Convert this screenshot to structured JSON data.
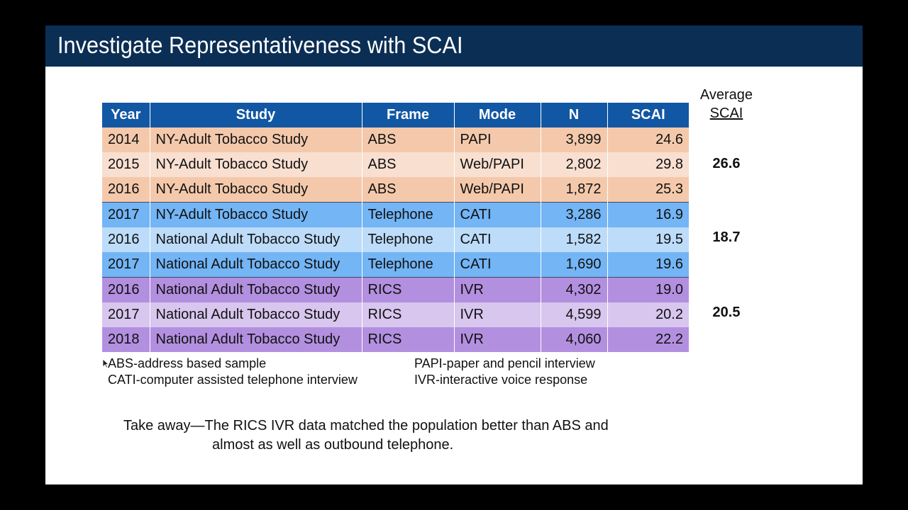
{
  "slide": {
    "title": "Investigate Representativeness with SCAI"
  },
  "table": {
    "headers": [
      "Year",
      "Study",
      "Frame",
      "Mode",
      "N",
      "SCAI"
    ],
    "rows": [
      [
        "2014",
        "NY-Adult Tobacco Study",
        "ABS",
        "PAPI",
        "3,899",
        "24.6"
      ],
      [
        "2015",
        "NY-Adult Tobacco Study",
        "ABS",
        "Web/PAPI",
        "2,802",
        "29.8"
      ],
      [
        "2016",
        "NY-Adult Tobacco Study",
        "ABS",
        "Web/PAPI",
        "1,872",
        "25.3"
      ],
      [
        "2017",
        "NY-Adult Tobacco Study",
        "Telephone",
        "CATI",
        "3,286",
        "16.9"
      ],
      [
        "2016",
        "National Adult Tobacco Study",
        "Telephone",
        "CATI",
        "1,582",
        "19.5"
      ],
      [
        "2017",
        "National Adult Tobacco Study",
        "Telephone",
        "CATI",
        "1,690",
        "19.6"
      ],
      [
        "2016",
        "National Adult Tobacco Study",
        "RICS",
        "IVR",
        "4,302",
        "19.0"
      ],
      [
        "2017",
        "National Adult Tobacco Study",
        "RICS",
        "IVR",
        "4,599",
        "20.2"
      ],
      [
        "2018",
        "National Adult Tobacco Study",
        "RICS",
        "IVR",
        "4,060",
        "22.2"
      ]
    ]
  },
  "average": {
    "header_line1": "Average",
    "header_line2": "SCAI",
    "values": [
      "26.6",
      "18.7",
      "20.5"
    ]
  },
  "legend": {
    "abs": "ABS-address based sample",
    "cati": "CATI-computer assisted telephone interview",
    "papi": "PAPI-paper and pencil interview",
    "ivr": "IVR-interactive voice response"
  },
  "takeaway": {
    "line1": "Take away—The RICS IVR data matched the population better than ABS and",
    "line2": "almost as well as outbound telephone."
  },
  "colors": {
    "title_bar": "#0b2e54",
    "header": "#1257a3",
    "abs_dark": "#f4c9ab",
    "abs_light": "#f8dfd0",
    "tel_dark": "#73b5f5",
    "tel_light": "#bcdcfa",
    "rics_dark": "#b38fe0",
    "rics_light": "#d8c6ee"
  }
}
